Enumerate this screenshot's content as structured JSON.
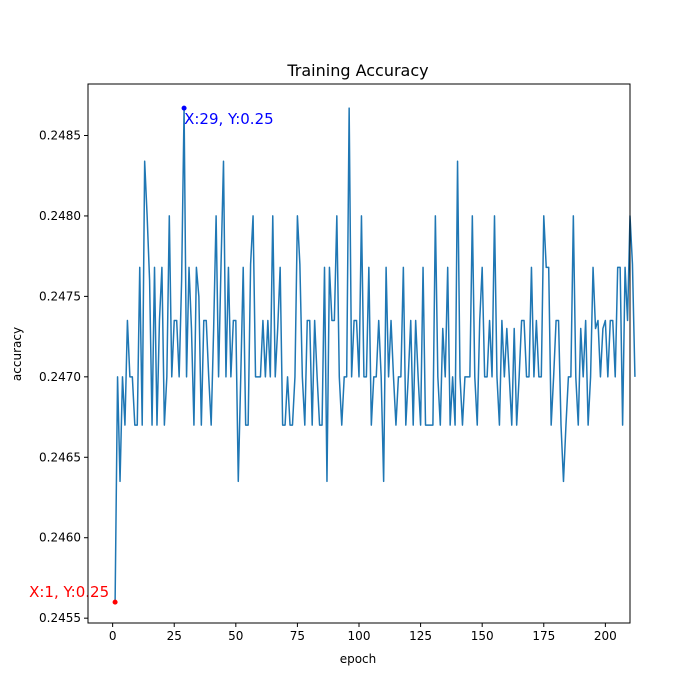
{
  "chart_data": {
    "type": "line",
    "title": "Training Accuracy",
    "xlabel": "epoch",
    "ylabel": "accuracy",
    "xlim": [
      -10,
      210
    ],
    "ylim": [
      0.24547,
      0.24882
    ],
    "xticks": [
      0,
      25,
      50,
      75,
      100,
      125,
      150,
      175,
      200
    ],
    "yticks": [
      0.2455,
      0.246,
      0.2465,
      0.247,
      0.2475,
      0.248,
      0.2485
    ],
    "xtick_labels": [
      "0",
      "25",
      "50",
      "75",
      "100",
      "125",
      "150",
      "175",
      "200"
    ],
    "ytick_labels": [
      "0.2455",
      "0.2460",
      "0.2465",
      "0.2470",
      "0.2475",
      "0.2480",
      "0.2485"
    ],
    "grid": false,
    "series_color": "#1f77b4",
    "series": [
      {
        "x_start": 1,
        "x_step": 1,
        "values": [
          0.2456,
          0.247,
          0.24635,
          0.247,
          0.2467,
          0.24735,
          0.247,
          0.247,
          0.2467,
          0.2467,
          0.24768,
          0.2467,
          0.24834,
          0.248,
          0.2476,
          0.2467,
          0.24768,
          0.2467,
          0.24735,
          0.24768,
          0.2467,
          0.247,
          0.248,
          0.247,
          0.24735,
          0.24735,
          0.247,
          0.2476,
          0.24867,
          0.247,
          0.24768,
          0.2473,
          0.2467,
          0.24768,
          0.2475,
          0.2467,
          0.24735,
          0.24735,
          0.247,
          0.2467,
          0.2473,
          0.248,
          0.247,
          0.2477,
          0.24834,
          0.247,
          0.24768,
          0.247,
          0.24735,
          0.24735,
          0.24635,
          0.247,
          0.24768,
          0.2467,
          0.2467,
          0.2477,
          0.248,
          0.247,
          0.247,
          0.247,
          0.24735,
          0.247,
          0.24735,
          0.247,
          0.248,
          0.247,
          0.2473,
          0.24768,
          0.2467,
          0.2467,
          0.247,
          0.2467,
          0.2467,
          0.247,
          0.248,
          0.2477,
          0.247,
          0.2467,
          0.24735,
          0.24735,
          0.2467,
          0.24735,
          0.247,
          0.2467,
          0.2467,
          0.24768,
          0.24635,
          0.24768,
          0.24735,
          0.24735,
          0.248,
          0.247,
          0.2467,
          0.247,
          0.247,
          0.24867,
          0.247,
          0.24735,
          0.24735,
          0.247,
          0.248,
          0.247,
          0.247,
          0.24768,
          0.2467,
          0.247,
          0.247,
          0.24735,
          0.247,
          0.24635,
          0.24768,
          0.247,
          0.24735,
          0.247,
          0.2467,
          0.247,
          0.247,
          0.24768,
          0.2467,
          0.247,
          0.24735,
          0.2467,
          0.24735,
          0.247,
          0.2467,
          0.24768,
          0.2467,
          0.2467,
          0.2467,
          0.2467,
          0.248,
          0.247,
          0.2467,
          0.2473,
          0.247,
          0.24768,
          0.2467,
          0.247,
          0.2467,
          0.24834,
          0.247,
          0.2467,
          0.247,
          0.247,
          0.247,
          0.248,
          0.247,
          0.2467,
          0.24735,
          0.24768,
          0.247,
          0.247,
          0.24735,
          0.247,
          0.248,
          0.247,
          0.2467,
          0.24735,
          0.247,
          0.2473,
          0.247,
          0.2467,
          0.2473,
          0.2467,
          0.247,
          0.24735,
          0.24735,
          0.247,
          0.247,
          0.24768,
          0.247,
          0.24735,
          0.247,
          0.247,
          0.248,
          0.24768,
          0.24768,
          0.2467,
          0.247,
          0.24735,
          0.24735,
          0.2467,
          0.24635,
          0.2467,
          0.247,
          0.247,
          0.248,
          0.247,
          0.2467,
          0.2473,
          0.247,
          0.24735,
          0.2467,
          0.247,
          0.24768,
          0.2473,
          0.24735,
          0.247,
          0.2473,
          0.24735,
          0.247,
          0.24735,
          0.24735,
          0.247,
          0.24768,
          0.24768,
          0.2467,
          0.24768,
          0.24735,
          0.248,
          0.2477,
          0.247
        ]
      }
    ],
    "annotations": [
      {
        "x": 1,
        "y": 0.2456,
        "label": "X:1, Y:0.25",
        "color": "#ff0000"
      },
      {
        "x": 29,
        "y": 0.24867,
        "label": "X:29, Y:0.25",
        "color": "#0000ff"
      }
    ]
  }
}
